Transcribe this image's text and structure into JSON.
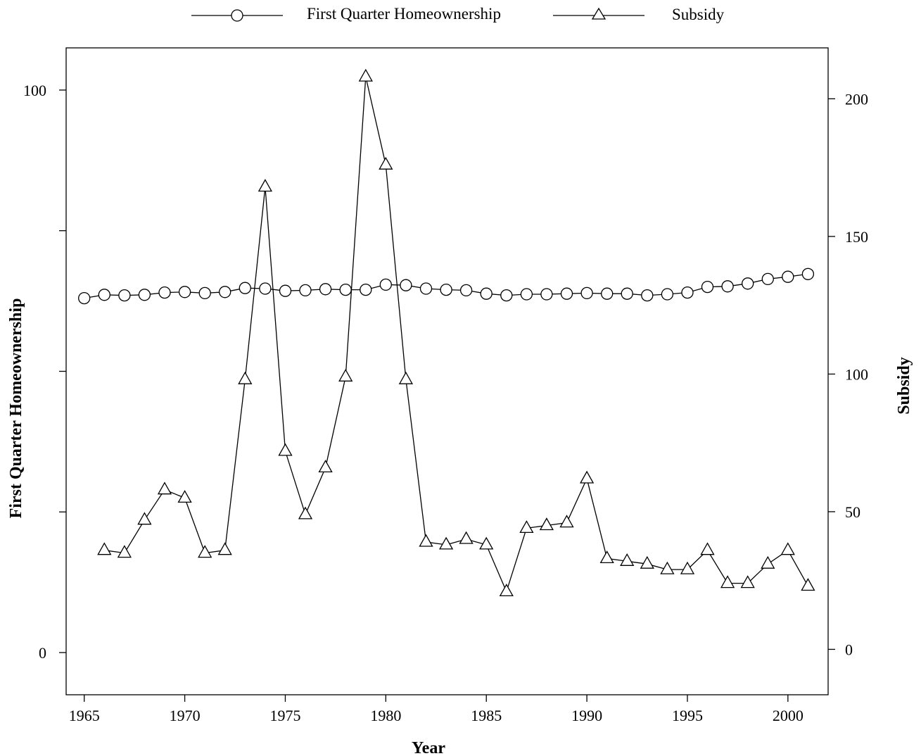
{
  "chart_data": {
    "type": "line",
    "title": "",
    "xlabel": "Year",
    "ylabel_left": "First Quarter Homeownership",
    "ylabel_right": "Subsidy",
    "xlim": [
      1964.1,
      2002.0
    ],
    "ylim_left": [
      -7.5,
      107.5
    ],
    "ylim_right": [
      -16.5,
      218.5
    ],
    "x_ticks": [
      1965,
      1970,
      1975,
      1980,
      1985,
      1990,
      1995,
      2000
    ],
    "y_left_ticks": [
      0,
      25,
      50,
      75,
      100
    ],
    "y_left_tick_labels": [
      "0",
      "",
      "",
      "",
      "100"
    ],
    "y_right_ticks": [
      0,
      50,
      100,
      150,
      200
    ],
    "y_right_tick_labels": [
      "0",
      "50",
      "100",
      "150",
      "200"
    ],
    "grid": false,
    "legend_position": "top",
    "series": [
      {
        "name": "First Quarter Homeownership",
        "marker": "circle",
        "axis": "left",
        "x": [
          1965,
          1966,
          1967,
          1968,
          1969,
          1970,
          1971,
          1972,
          1973,
          1974,
          1975,
          1976,
          1977,
          1978,
          1979,
          1980,
          1981,
          1982,
          1983,
          1984,
          1985,
          1986,
          1987,
          1988,
          1989,
          1990,
          1991,
          1992,
          1993,
          1994,
          1995,
          1996,
          1997,
          1998,
          1999,
          2000,
          2001
        ],
        "values": [
          63.0,
          63.6,
          63.5,
          63.6,
          64.0,
          64.1,
          63.9,
          64.1,
          64.8,
          64.7,
          64.3,
          64.4,
          64.6,
          64.5,
          64.5,
          65.4,
          65.3,
          64.7,
          64.5,
          64.4,
          63.8,
          63.5,
          63.7,
          63.7,
          63.8,
          63.9,
          63.8,
          63.8,
          63.5,
          63.7,
          64.0,
          65.0,
          65.1,
          65.6,
          66.4,
          66.8,
          67.3
        ]
      },
      {
        "name": "Subsidy",
        "marker": "triangle",
        "axis": "right",
        "x": [
          1966,
          1967,
          1968,
          1969,
          1970,
          1971,
          1972,
          1973,
          1974,
          1975,
          1976,
          1977,
          1978,
          1979,
          1980,
          1981,
          1982,
          1983,
          1984,
          1985,
          1986,
          1987,
          1988,
          1989,
          1990,
          1991,
          1992,
          1993,
          1994,
          1995,
          1996,
          1997,
          1998,
          1999,
          2000,
          2001
        ],
        "values": [
          36,
          35,
          47,
          58,
          55,
          35,
          36,
          98,
          168,
          72,
          49,
          66,
          99,
          208,
          176,
          98,
          39,
          38,
          40,
          38,
          21,
          44,
          45,
          46,
          62,
          33,
          32,
          31,
          29,
          29,
          36,
          24,
          24,
          31,
          36,
          23
        ]
      }
    ]
  }
}
